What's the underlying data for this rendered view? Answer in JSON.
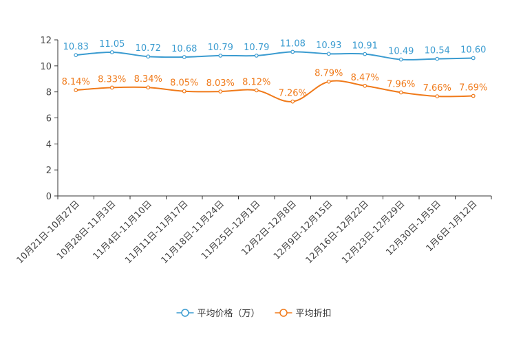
{
  "chart_data": {
    "type": "line",
    "categories": [
      "10月21日-10月27日",
      "10月28日-11月3日",
      "11月4日-11月10日",
      "11月11日-11月17日",
      "11月18日-11月24日",
      "11月25日-12月1日",
      "12月2日-12月8日",
      "12月9日-12月15日",
      "12月16日-12月22日",
      "12月23日-12月29日",
      "12月30日-1月5日",
      "1月6日-1月12日"
    ],
    "series": [
      {
        "name": "平均价格（万）",
        "color": "#3a9bd0",
        "values": [
          10.83,
          11.05,
          10.72,
          10.68,
          10.79,
          10.79,
          11.08,
          10.93,
          10.91,
          10.49,
          10.54,
          10.6
        ],
        "labels": [
          "10.83",
          "11.05",
          "10.72",
          "10.68",
          "10.79",
          "10.79",
          "11.08",
          "10.93",
          "10.91",
          "10.49",
          "10.54",
          "10.60"
        ]
      },
      {
        "name": "平均折扣",
        "color": "#f07a1a",
        "values": [
          8.14,
          8.33,
          8.34,
          8.05,
          8.03,
          8.12,
          7.26,
          8.79,
          8.47,
          7.96,
          7.66,
          7.69
        ],
        "labels": [
          "8.14%",
          "8.33%",
          "8.34%",
          "8.05%",
          "8.03%",
          "8.12%",
          "7.26%",
          "8.79%",
          "8.47%",
          "7.96%",
          "7.66%",
          "7.69%"
        ]
      }
    ],
    "yticks": [
      "0",
      "2",
      "4",
      "6",
      "8",
      "10",
      "12"
    ],
    "ylim": [
      0,
      12
    ],
    "title": "",
    "xlabel": "",
    "ylabel": "",
    "legend_position": "bottom-center"
  }
}
